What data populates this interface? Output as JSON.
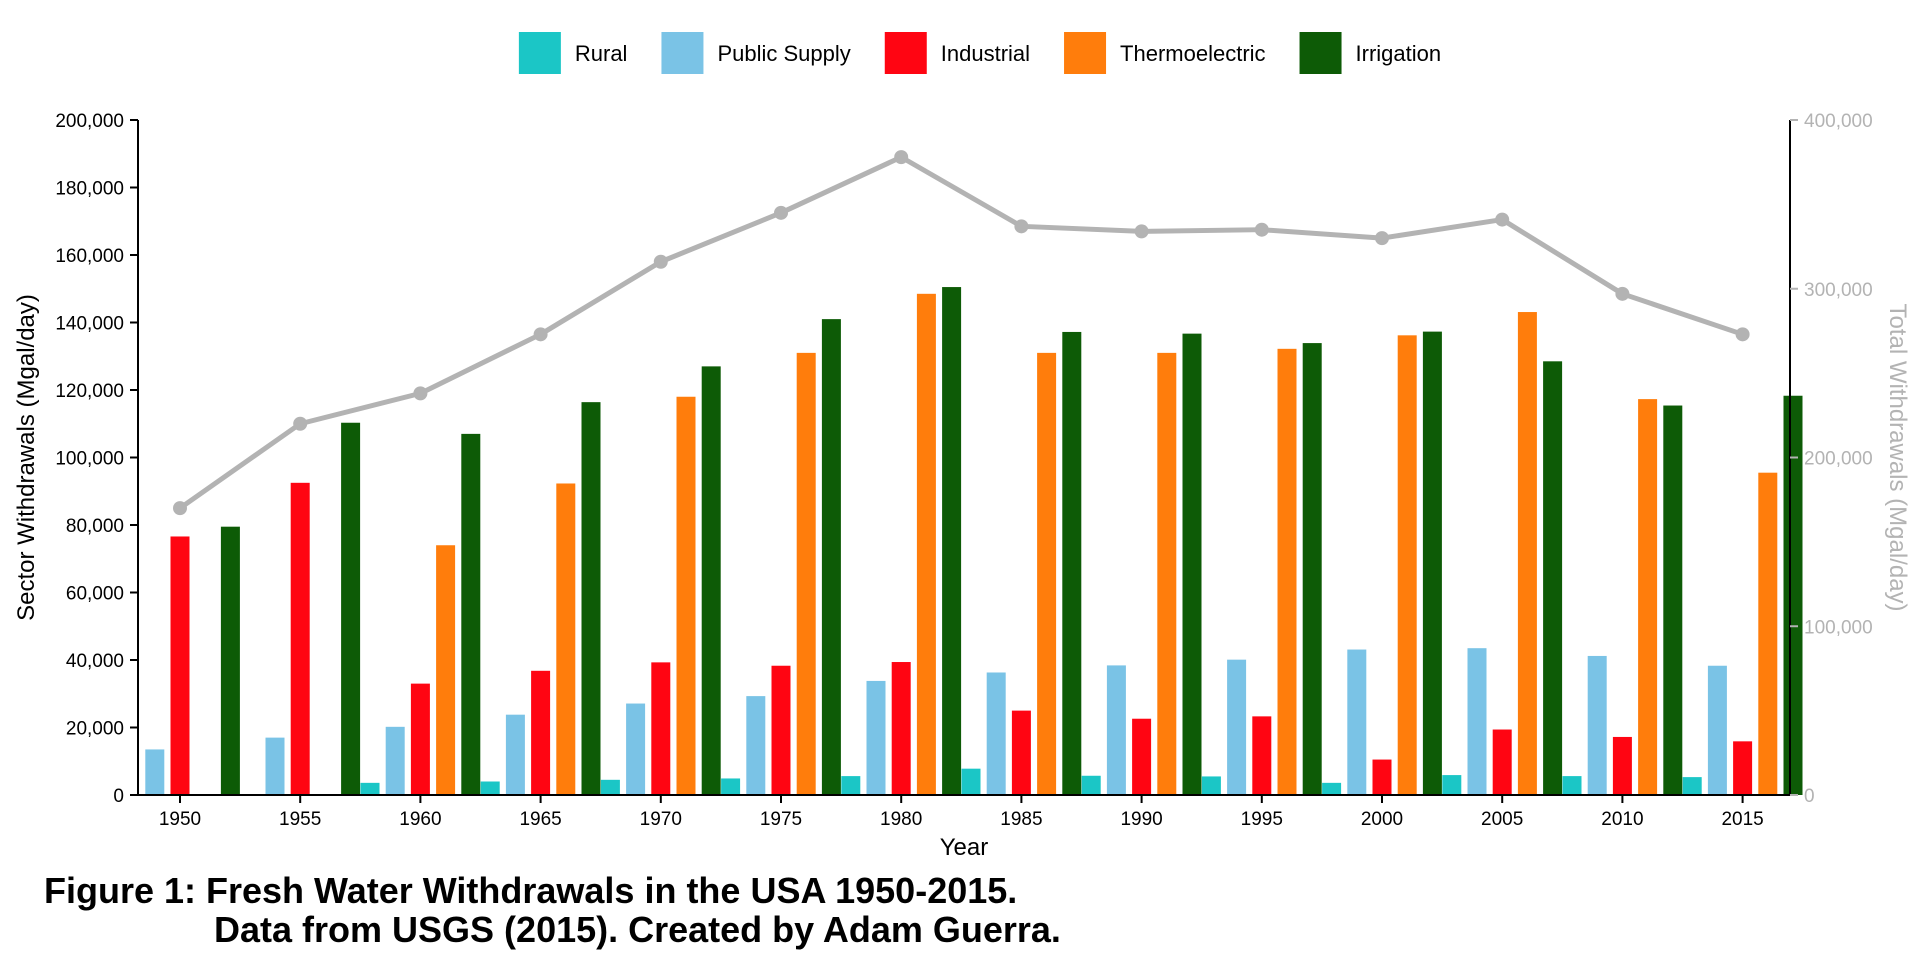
{
  "chart_data": {
    "type": "bar",
    "categories": [
      "1950",
      "1955",
      "1960",
      "1965",
      "1970",
      "1975",
      "1980",
      "1985",
      "1990",
      "1995",
      "2000",
      "2005",
      "2010",
      "2015"
    ],
    "series": [
      {
        "name": "Rural",
        "color": "#1bc6c6",
        "values": [
          null,
          null,
          3600,
          4000,
          4500,
          4900,
          5600,
          7800,
          5700,
          5500,
          3600,
          5900,
          5600,
          5300
        ]
      },
      {
        "name": "Public Supply",
        "color": "#7ac3e6",
        "values": [
          13500,
          17000,
          20200,
          23800,
          27100,
          29300,
          33800,
          36300,
          38400,
          40100,
          43100,
          43500,
          41200,
          38300
        ]
      },
      {
        "name": "Industrial",
        "color": "#ff0512",
        "values": [
          76600,
          92500,
          33000,
          36800,
          39300,
          38300,
          39400,
          25000,
          22600,
          23300,
          10500,
          19400,
          17200,
          15900
        ]
      },
      {
        "name": "Thermoelectric",
        "color": "#ff7d0c",
        "values": [
          null,
          null,
          74000,
          92300,
          118000,
          131000,
          148500,
          131000,
          131000,
          132200,
          136200,
          143100,
          117300,
          95500
        ]
      },
      {
        "name": "Irrigation",
        "color": "#0d5b06",
        "values": [
          79500,
          110300,
          107000,
          116400,
          127000,
          141000,
          150500,
          137200,
          136700,
          133900,
          137300,
          128500,
          115400,
          118300
        ]
      }
    ],
    "total": {
      "name": "Total",
      "color": "#b3b3b3",
      "values": [
        170000,
        220000,
        238000,
        273000,
        316000,
        345000,
        378000,
        337000,
        334000,
        335000,
        330000,
        341000,
        297000,
        273000
      ]
    },
    "xlabel": "Year",
    "ylabel": "Sector Withdrawals (Mgal/day)",
    "y2label": "Total Withdrawals (Mgal/day)",
    "ylim": [
      0,
      200000
    ],
    "y2lim": [
      0,
      400000
    ],
    "yticks": [
      "0",
      "20,000",
      "40,000",
      "60,000",
      "80,000",
      "100,000",
      "120,000",
      "140,000",
      "160,000",
      "180,000",
      "200,000"
    ],
    "y2ticks": [
      "0",
      "100,000",
      "200,000",
      "300,000",
      "400,000"
    ],
    "legend_position": "top",
    "grid": false
  },
  "caption": {
    "line1": "Figure 1: Fresh Water Withdrawals in the USA 1950-2015.",
    "line2": "Data from USGS (2015). Created by Adam Guerra."
  }
}
